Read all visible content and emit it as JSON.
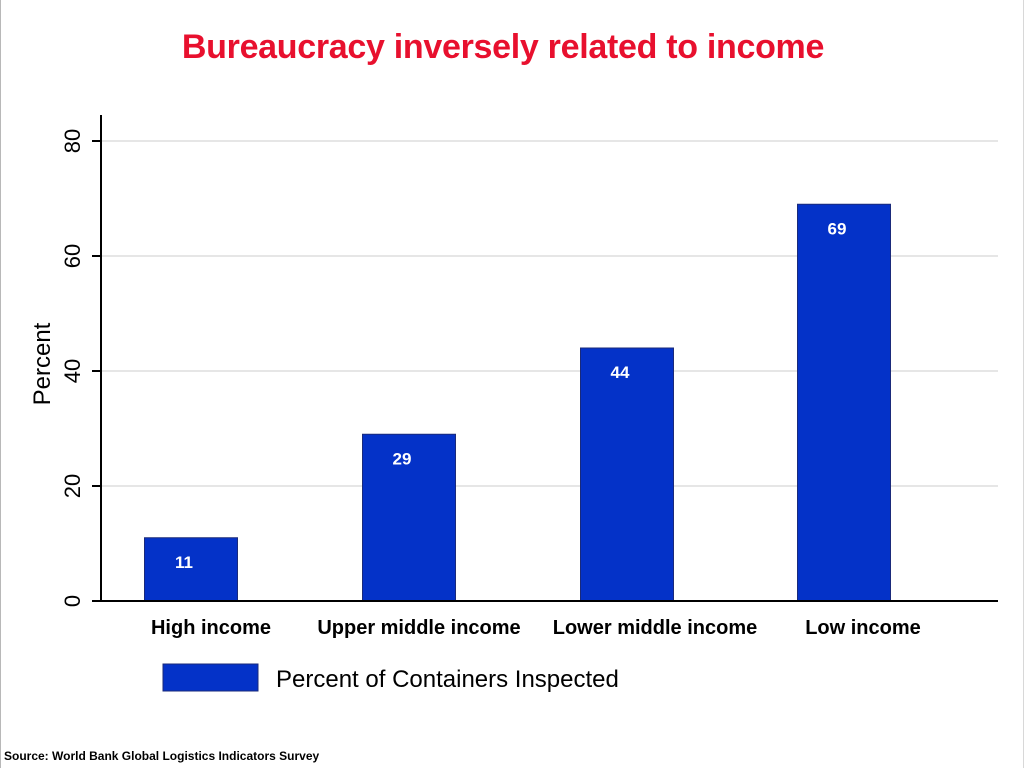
{
  "slide": {
    "source": "Source: World Bank Global Logistics Indicators Survey"
  },
  "colors": {
    "title": "#e8102e",
    "bar": "#0432c8",
    "bar_label": "#ffffff",
    "grid": "#e6e6e6",
    "axis": "#000000"
  },
  "chart_data": {
    "type": "bar",
    "title": "Bureaucracy inversely related to income",
    "xlabel": "",
    "ylabel": "Percent",
    "ylim": [
      0,
      80
    ],
    "yticks": [
      0,
      20,
      40,
      60,
      80
    ],
    "grid": true,
    "legend_position": "bottom-left",
    "categories": [
      "High income",
      "Upper middle income",
      "Lower middle income",
      "Low income"
    ],
    "series": [
      {
        "name": "Percent of Containers Inspected",
        "values": [
          11,
          29,
          44,
          69
        ],
        "labels": [
          "11",
          "29",
          "44",
          "69"
        ]
      }
    ]
  }
}
